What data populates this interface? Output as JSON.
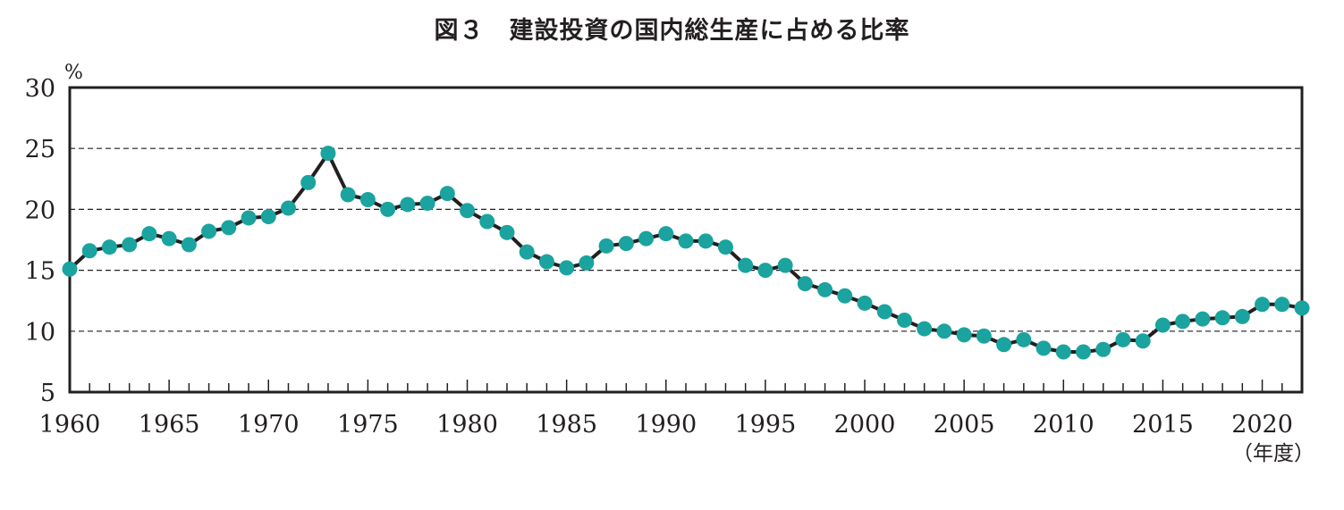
{
  "chart_data": {
    "type": "line",
    "title": "図３　建設投資の国内総生産に占める比率",
    "ylabel": "%",
    "xlabel": "（年度）",
    "ylim": [
      5,
      30
    ],
    "xlim": [
      1960,
      2022
    ],
    "yticks": [
      "5",
      "10",
      "15",
      "20",
      "25",
      "30"
    ],
    "xticks": [
      "1960",
      "1965",
      "1970",
      "1975",
      "1980",
      "1985",
      "1990",
      "1995",
      "2000",
      "2005",
      "2010",
      "2015",
      "2020"
    ],
    "grid": "horizontal dashed",
    "colors": {
      "line": "#231f20",
      "marker": "#1aa39f"
    },
    "x": [
      1960,
      1961,
      1962,
      1963,
      1964,
      1965,
      1966,
      1967,
      1968,
      1969,
      1970,
      1971,
      1972,
      1973,
      1974,
      1975,
      1976,
      1977,
      1978,
      1979,
      1980,
      1981,
      1982,
      1983,
      1984,
      1985,
      1986,
      1987,
      1988,
      1989,
      1990,
      1991,
      1992,
      1993,
      1994,
      1995,
      1996,
      1997,
      1998,
      1999,
      2000,
      2001,
      2002,
      2003,
      2004,
      2005,
      2006,
      2007,
      2008,
      2009,
      2010,
      2011,
      2012,
      2013,
      2014,
      2015,
      2016,
      2017,
      2018,
      2019,
      2020,
      2021,
      2022
    ],
    "values": [
      15.1,
      16.6,
      16.9,
      17.1,
      18.0,
      17.6,
      17.1,
      18.2,
      18.5,
      19.3,
      19.4,
      20.1,
      22.2,
      24.6,
      21.2,
      20.8,
      20.0,
      20.4,
      20.5,
      21.3,
      19.9,
      19.0,
      18.1,
      16.5,
      15.7,
      15.2,
      15.6,
      17.0,
      17.2,
      17.6,
      18.0,
      17.4,
      17.4,
      16.9,
      15.4,
      15.0,
      15.4,
      13.9,
      13.4,
      12.9,
      12.3,
      11.6,
      10.9,
      10.2,
      10.0,
      9.7,
      9.6,
      8.9,
      9.3,
      8.6,
      8.3,
      8.3,
      8.5,
      9.3,
      9.2,
      10.5,
      10.8,
      11.0,
      11.1,
      11.2,
      12.2,
      12.2,
      11.9
    ]
  }
}
